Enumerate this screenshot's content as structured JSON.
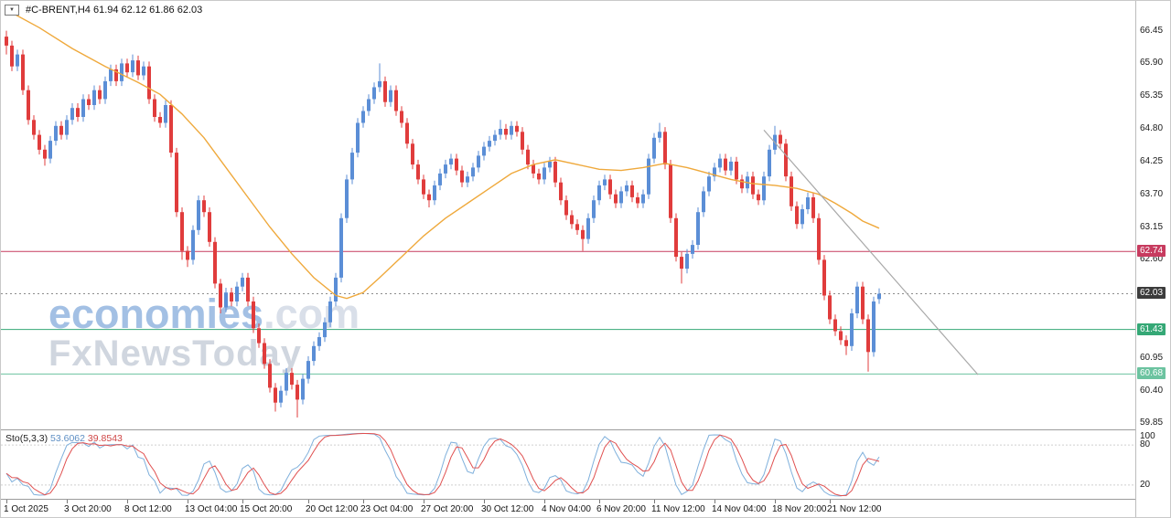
{
  "header": {
    "symbol_ohlc": "#C-BRENT,H4 61.94 62.12 61.86 62.03"
  },
  "icons": {
    "dropdown": "▼"
  },
  "watermark": {
    "brand": "economies",
    "brand_suffix": ".com",
    "line2": "FxNewsToday"
  },
  "chart_data": {
    "type": "candlestick",
    "title": "#C-BRENT,H4",
    "symbol": "#C-BRENT",
    "timeframe": "H4",
    "last_ohlc": {
      "open": 61.94,
      "high": 62.12,
      "low": 61.86,
      "close": 62.03
    },
    "ylim": [
      59.75,
      66.95
    ],
    "price_ticks": [
      66.45,
      65.9,
      65.35,
      64.8,
      64.25,
      63.7,
      63.15,
      62.6,
      60.95,
      60.4,
      59.85
    ],
    "price_badges": [
      {
        "value": 62.74,
        "bg": "#c73b5f"
      },
      {
        "value": 62.03,
        "bg": "#3c3c3c"
      },
      {
        "value": 61.43,
        "bg": "#35a876"
      },
      {
        "value": 60.68,
        "bg": "#6cc3a0"
      }
    ],
    "hlines": [
      {
        "price": 62.74,
        "color": "#c73b5f",
        "style": "solid"
      },
      {
        "price": 62.03,
        "color": "#8c8c8c",
        "style": "dashed"
      },
      {
        "price": 61.43,
        "color": "#35a876",
        "style": "solid"
      },
      {
        "price": 60.68,
        "color": "#6cc3a0",
        "style": "solid"
      }
    ],
    "time_ticks": [
      {
        "label": "1 Oct 2025",
        "bar": 0
      },
      {
        "label": "3 Oct 20:00",
        "bar": 11
      },
      {
        "label": "8 Oct 12:00",
        "bar": 22
      },
      {
        "label": "13 Oct 04:00",
        "bar": 33
      },
      {
        "label": "15 Oct 20:00",
        "bar": 43
      },
      {
        "label": "20 Oct 12:00",
        "bar": 55
      },
      {
        "label": "23 Oct 04:00",
        "bar": 65
      },
      {
        "label": "27 Oct 20:00",
        "bar": 76
      },
      {
        "label": "30 Oct 12:00",
        "bar": 87
      },
      {
        "label": "4 Nov 04:00",
        "bar": 98
      },
      {
        "label": "6 Nov 20:00",
        "bar": 108
      },
      {
        "label": "11 Nov 12:00",
        "bar": 118
      },
      {
        "label": "14 Nov 04:00",
        "bar": 129
      },
      {
        "label": "18 Nov 20:00",
        "bar": 140
      },
      {
        "label": "21 Nov 12:00",
        "bar": 150
      }
    ],
    "candles": [
      [
        66.35,
        66.45,
        66.05,
        66.2
      ],
      [
        66.2,
        66.28,
        65.77,
        65.85
      ],
      [
        65.85,
        66.13,
        65.77,
        66.05
      ],
      [
        66.05,
        66.13,
        65.37,
        65.45
      ],
      [
        65.45,
        65.53,
        64.87,
        64.95
      ],
      [
        64.95,
        65.03,
        64.62,
        64.7
      ],
      [
        64.7,
        64.78,
        64.37,
        64.45
      ],
      [
        64.45,
        64.53,
        64.18,
        64.3
      ],
      [
        64.3,
        64.68,
        64.22,
        64.6
      ],
      [
        64.6,
        64.93,
        64.52,
        64.85
      ],
      [
        64.85,
        64.93,
        64.62,
        64.7
      ],
      [
        64.7,
        65.03,
        64.62,
        64.95
      ],
      [
        64.95,
        65.23,
        64.87,
        65.15
      ],
      [
        65.15,
        65.23,
        64.92,
        65.0
      ],
      [
        65.0,
        65.38,
        64.92,
        65.3
      ],
      [
        65.3,
        65.38,
        65.12,
        65.2
      ],
      [
        65.2,
        65.53,
        65.12,
        65.45
      ],
      [
        65.45,
        65.53,
        65.22,
        65.3
      ],
      [
        65.3,
        65.68,
        65.22,
        65.6
      ],
      [
        65.6,
        65.88,
        65.52,
        65.8
      ],
      [
        65.8,
        65.88,
        65.52,
        65.6
      ],
      [
        65.6,
        65.98,
        65.52,
        65.9
      ],
      [
        65.9,
        65.98,
        65.67,
        65.75
      ],
      [
        65.75,
        66.05,
        65.67,
        65.95
      ],
      [
        65.95,
        66.03,
        65.62,
        65.7
      ],
      [
        65.7,
        65.93,
        65.62,
        65.85
      ],
      [
        65.85,
        65.93,
        65.22,
        65.3
      ],
      [
        65.3,
        65.38,
        64.92,
        65.0
      ],
      [
        65.0,
        65.08,
        64.82,
        64.9
      ],
      [
        64.9,
        65.28,
        64.82,
        65.2
      ],
      [
        65.2,
        65.28,
        64.32,
        64.4
      ],
      [
        64.4,
        64.48,
        63.32,
        63.4
      ],
      [
        63.4,
        63.48,
        62.6,
        62.75
      ],
      [
        62.75,
        62.83,
        62.48,
        62.6
      ],
      [
        62.6,
        63.18,
        62.52,
        63.1
      ],
      [
        63.1,
        63.68,
        63.02,
        63.6
      ],
      [
        63.6,
        63.68,
        63.32,
        63.4
      ],
      [
        63.4,
        63.48,
        62.82,
        62.9
      ],
      [
        62.9,
        62.98,
        62.12,
        62.2
      ],
      [
        62.2,
        62.28,
        61.7,
        61.8
      ],
      [
        61.8,
        62.13,
        61.72,
        62.05
      ],
      [
        62.05,
        62.13,
        61.82,
        61.9
      ],
      [
        61.9,
        62.23,
        61.82,
        62.15
      ],
      [
        62.15,
        62.38,
        62.07,
        62.3
      ],
      [
        62.3,
        62.38,
        61.82,
        61.9
      ],
      [
        61.9,
        61.98,
        61.37,
        61.45
      ],
      [
        61.45,
        61.53,
        61.12,
        61.2
      ],
      [
        61.2,
        61.28,
        60.77,
        60.85
      ],
      [
        60.85,
        60.93,
        60.37,
        60.45
      ],
      [
        60.45,
        60.53,
        60.05,
        60.2
      ],
      [
        60.2,
        60.48,
        60.12,
        60.4
      ],
      [
        60.4,
        60.78,
        60.32,
        60.7
      ],
      [
        60.7,
        60.78,
        60.42,
        60.5
      ],
      [
        60.5,
        60.58,
        59.95,
        60.25
      ],
      [
        60.25,
        60.68,
        60.17,
        60.6
      ],
      [
        60.6,
        60.98,
        60.52,
        60.9
      ],
      [
        60.9,
        61.23,
        60.82,
        61.15
      ],
      [
        61.15,
        61.38,
        61.07,
        61.3
      ],
      [
        61.3,
        61.63,
        61.22,
        61.55
      ],
      [
        61.55,
        61.98,
        61.47,
        61.9
      ],
      [
        61.9,
        62.38,
        61.82,
        62.3
      ],
      [
        62.3,
        63.38,
        62.22,
        63.3
      ],
      [
        63.3,
        64.03,
        63.22,
        63.95
      ],
      [
        63.95,
        64.48,
        63.87,
        64.4
      ],
      [
        64.4,
        64.98,
        64.32,
        64.9
      ],
      [
        64.9,
        65.18,
        64.82,
        65.1
      ],
      [
        65.1,
        65.38,
        65.02,
        65.3
      ],
      [
        65.3,
        65.58,
        65.22,
        65.5
      ],
      [
        65.5,
        65.9,
        65.42,
        65.6
      ],
      [
        65.6,
        65.68,
        65.17,
        65.25
      ],
      [
        65.25,
        65.53,
        65.17,
        65.45
      ],
      [
        65.45,
        65.53,
        65.02,
        65.1
      ],
      [
        65.1,
        65.18,
        64.82,
        64.9
      ],
      [
        64.9,
        64.98,
        64.47,
        64.55
      ],
      [
        64.55,
        64.63,
        64.12,
        64.2
      ],
      [
        64.2,
        64.28,
        63.87,
        63.95
      ],
      [
        63.95,
        64.03,
        63.62,
        63.7
      ],
      [
        63.7,
        63.78,
        63.48,
        63.6
      ],
      [
        63.6,
        63.93,
        63.52,
        63.85
      ],
      [
        63.85,
        64.13,
        63.77,
        64.05
      ],
      [
        64.05,
        64.28,
        63.97,
        64.2
      ],
      [
        64.2,
        64.38,
        64.12,
        64.3
      ],
      [
        64.3,
        64.38,
        64.02,
        64.1
      ],
      [
        64.1,
        64.18,
        63.82,
        63.9
      ],
      [
        63.9,
        64.08,
        63.82,
        64.0
      ],
      [
        64.0,
        64.23,
        63.92,
        64.15
      ],
      [
        64.15,
        64.43,
        64.07,
        64.35
      ],
      [
        64.35,
        64.58,
        64.27,
        64.5
      ],
      [
        64.5,
        64.68,
        64.42,
        64.6
      ],
      [
        64.6,
        64.78,
        64.52,
        64.7
      ],
      [
        64.7,
        64.95,
        64.62,
        64.8
      ],
      [
        64.8,
        64.88,
        64.62,
        64.7
      ],
      [
        64.7,
        64.93,
        64.62,
        64.85
      ],
      [
        64.85,
        64.93,
        64.67,
        64.75
      ],
      [
        64.75,
        64.83,
        64.37,
        64.45
      ],
      [
        64.45,
        64.53,
        64.12,
        64.2
      ],
      [
        64.2,
        64.28,
        63.97,
        64.05
      ],
      [
        64.05,
        64.13,
        63.87,
        63.95
      ],
      [
        63.95,
        64.23,
        63.87,
        64.15
      ],
      [
        64.15,
        64.33,
        64.07,
        64.25
      ],
      [
        64.25,
        64.33,
        63.82,
        63.9
      ],
      [
        63.9,
        63.98,
        63.52,
        63.6
      ],
      [
        63.6,
        63.68,
        63.27,
        63.35
      ],
      [
        63.35,
        63.43,
        63.12,
        63.2
      ],
      [
        63.2,
        63.28,
        63.02,
        63.1
      ],
      [
        63.1,
        63.18,
        62.75,
        62.95
      ],
      [
        62.95,
        63.38,
        62.87,
        63.3
      ],
      [
        63.3,
        63.68,
        63.22,
        63.6
      ],
      [
        63.6,
        63.93,
        63.52,
        63.85
      ],
      [
        63.85,
        64.03,
        63.77,
        63.95
      ],
      [
        63.95,
        64.03,
        63.62,
        63.7
      ],
      [
        63.7,
        63.78,
        63.47,
        63.55
      ],
      [
        63.55,
        63.83,
        63.47,
        63.75
      ],
      [
        63.75,
        63.93,
        63.67,
        63.85
      ],
      [
        63.85,
        63.93,
        63.57,
        63.65
      ],
      [
        63.65,
        63.73,
        63.47,
        63.55
      ],
      [
        63.55,
        63.78,
        63.47,
        63.7
      ],
      [
        63.7,
        64.38,
        63.62,
        64.3
      ],
      [
        64.3,
        64.73,
        64.22,
        64.65
      ],
      [
        64.65,
        64.9,
        64.57,
        64.75
      ],
      [
        64.75,
        64.83,
        64.12,
        64.2
      ],
      [
        64.2,
        64.28,
        63.22,
        63.3
      ],
      [
        63.3,
        63.38,
        62.57,
        62.65
      ],
      [
        62.65,
        62.73,
        62.2,
        62.45
      ],
      [
        62.45,
        62.78,
        62.37,
        62.7
      ],
      [
        62.7,
        62.93,
        62.62,
        62.85
      ],
      [
        62.85,
        63.48,
        62.77,
        63.4
      ],
      [
        63.4,
        63.83,
        63.32,
        63.75
      ],
      [
        63.75,
        64.08,
        63.67,
        64.0
      ],
      [
        64.0,
        64.23,
        63.92,
        64.15
      ],
      [
        64.15,
        64.38,
        64.07,
        64.3
      ],
      [
        64.3,
        64.38,
        64.02,
        64.1
      ],
      [
        64.1,
        64.33,
        64.02,
        64.25
      ],
      [
        64.25,
        64.33,
        63.87,
        63.95
      ],
      [
        63.95,
        64.03,
        63.72,
        63.8
      ],
      [
        63.8,
        64.08,
        63.72,
        64.0
      ],
      [
        64.0,
        64.08,
        63.62,
        63.7
      ],
      [
        63.7,
        63.78,
        63.52,
        63.6
      ],
      [
        63.6,
        64.08,
        63.52,
        64.0
      ],
      [
        64.0,
        64.53,
        63.92,
        64.45
      ],
      [
        64.45,
        64.85,
        64.37,
        64.7
      ],
      [
        64.7,
        64.78,
        64.47,
        64.55
      ],
      [
        64.55,
        64.63,
        63.92,
        64.0
      ],
      [
        64.0,
        64.08,
        63.42,
        63.5
      ],
      [
        63.5,
        63.58,
        63.12,
        63.2
      ],
      [
        63.2,
        63.53,
        63.12,
        63.45
      ],
      [
        63.45,
        63.73,
        63.37,
        63.65
      ],
      [
        63.65,
        63.73,
        63.22,
        63.3
      ],
      [
        63.3,
        63.38,
        62.52,
        62.6
      ],
      [
        62.6,
        62.68,
        61.92,
        62.0
      ],
      [
        62.0,
        62.08,
        61.52,
        61.6
      ],
      [
        61.6,
        61.68,
        61.32,
        61.4
      ],
      [
        61.4,
        61.48,
        61.17,
        61.25
      ],
      [
        61.25,
        61.33,
        61.0,
        61.15
      ],
      [
        61.15,
        61.78,
        61.07,
        61.7
      ],
      [
        61.7,
        62.23,
        61.62,
        62.15
      ],
      [
        62.15,
        62.23,
        61.52,
        61.6
      ],
      [
        61.6,
        61.68,
        60.72,
        61.05
      ],
      [
        61.05,
        61.98,
        60.97,
        61.9
      ],
      [
        61.94,
        62.12,
        61.86,
        62.03
      ]
    ],
    "ma_points": [
      [
        0,
        66.8
      ],
      [
        6,
        66.5
      ],
      [
        12,
        66.15
      ],
      [
        18,
        65.85
      ],
      [
        24,
        65.58
      ],
      [
        28,
        65.38
      ],
      [
        32,
        65.05
      ],
      [
        36,
        64.65
      ],
      [
        40,
        64.15
      ],
      [
        44,
        63.65
      ],
      [
        48,
        63.15
      ],
      [
        52,
        62.7
      ],
      [
        56,
        62.3
      ],
      [
        60,
        62.0
      ],
      [
        62,
        61.95
      ],
      [
        65,
        62.05
      ],
      [
        68,
        62.3
      ],
      [
        72,
        62.65
      ],
      [
        76,
        63.0
      ],
      [
        80,
        63.3
      ],
      [
        84,
        63.55
      ],
      [
        88,
        63.8
      ],
      [
        92,
        64.05
      ],
      [
        96,
        64.2
      ],
      [
        100,
        64.28
      ],
      [
        104,
        64.2
      ],
      [
        108,
        64.12
      ],
      [
        112,
        64.1
      ],
      [
        116,
        64.15
      ],
      [
        120,
        64.22
      ],
      [
        124,
        64.15
      ],
      [
        128,
        64.05
      ],
      [
        132,
        63.95
      ],
      [
        136,
        63.88
      ],
      [
        140,
        63.85
      ],
      [
        144,
        63.8
      ],
      [
        148,
        63.7
      ],
      [
        151,
        63.55
      ],
      [
        154,
        63.38
      ],
      [
        156,
        63.25
      ],
      [
        158,
        63.17
      ],
      [
        159,
        63.13
      ]
    ],
    "trendline": {
      "from": [
        138,
        64.78
      ],
      "to": [
        177,
        60.67
      ]
    },
    "stochastic": {
      "label": "Sto(5,3,3)",
      "value_main": "53.6062",
      "value_signal": "39.8543",
      "k_period": 5,
      "d_period": 3,
      "slowing": 3,
      "range": [
        0,
        100
      ],
      "levels": [
        100,
        80,
        20
      ],
      "level_lines": [
        80,
        20
      ]
    },
    "colors": {
      "bull": "#5b8ed6",
      "bear": "#e03c3c",
      "ma": "#efa93c",
      "trendline": "#a8a8a8",
      "sto_main": "#7fb0dc",
      "sto_signal": "#e05050",
      "bg": "#ffffff"
    }
  }
}
